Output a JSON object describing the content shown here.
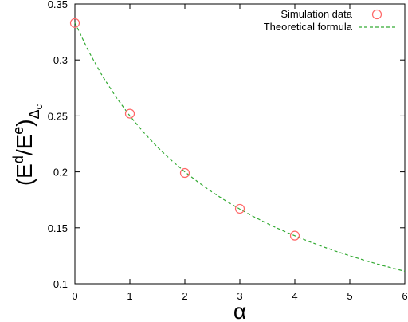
{
  "chart_data": {
    "type": "scatter",
    "title": "",
    "xlabel": "α",
    "ylabel": {
      "open": "(E",
      "sup1": "d",
      "slash": "/E",
      "sup2": "e",
      "close": ")",
      "sub": "Δ",
      "subsub": "c"
    },
    "xlim": [
      0,
      6
    ],
    "ylim": [
      0.1,
      0.35
    ],
    "x_ticks": [
      "0",
      "1",
      "2",
      "3",
      "4",
      "5",
      "6"
    ],
    "y_ticks": [
      "0.1",
      "0.15",
      "0.2",
      "0.25",
      "0.3",
      "0.35"
    ],
    "grid": false,
    "legend_position": "top-right",
    "series": [
      {
        "name": "Simulation data",
        "kind": "points",
        "marker": "open-circle",
        "color": "#ff6666",
        "x": [
          0,
          1,
          2,
          3,
          4
        ],
        "y": [
          0.333,
          0.252,
          0.199,
          0.167,
          0.143
        ]
      },
      {
        "name": "Theoretical formula",
        "kind": "line",
        "style": "dashed",
        "color": "#33aa33",
        "x": [
          0,
          0.25,
          0.5,
          0.75,
          1,
          1.25,
          1.5,
          1.75,
          2,
          2.25,
          2.5,
          2.75,
          3,
          3.25,
          3.5,
          3.75,
          4,
          4.25,
          4.5,
          4.75,
          5,
          5.25,
          5.5,
          5.75,
          6
        ],
        "y": [
          0.3333,
          0.3077,
          0.2857,
          0.2667,
          0.25,
          0.2353,
          0.2222,
          0.2105,
          0.2,
          0.1905,
          0.1818,
          0.1739,
          0.1667,
          0.16,
          0.1538,
          0.1481,
          0.1429,
          0.1379,
          0.1333,
          0.129,
          0.125,
          0.1212,
          0.1176,
          0.1143,
          0.1111
        ]
      }
    ]
  }
}
